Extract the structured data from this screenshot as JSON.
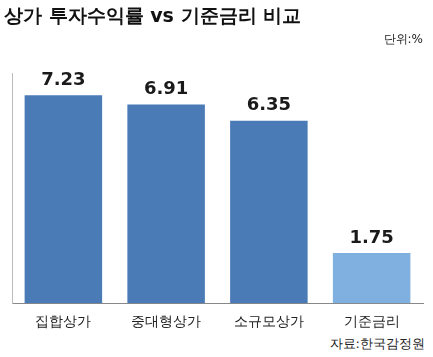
{
  "chart_data": {
    "type": "bar",
    "title": "상가 투자수익률 vs 기준금리 비교",
    "subtitle": "단위:%",
    "annotations": [
      "자료:한국감정원"
    ],
    "categories": [
      "집합상가",
      "중대형상가",
      "소규모상가",
      "기준금리"
    ],
    "values": [
      7.23,
      6.91,
      6.35,
      1.75
    ],
    "colors": [
      "#4a7bb7",
      "#4a7bb7",
      "#4a7bb7",
      "#7fb0e0"
    ],
    "ylim": [
      0,
      8
    ],
    "grid": false,
    "data_labels": true,
    "tick_labels": "x"
  }
}
